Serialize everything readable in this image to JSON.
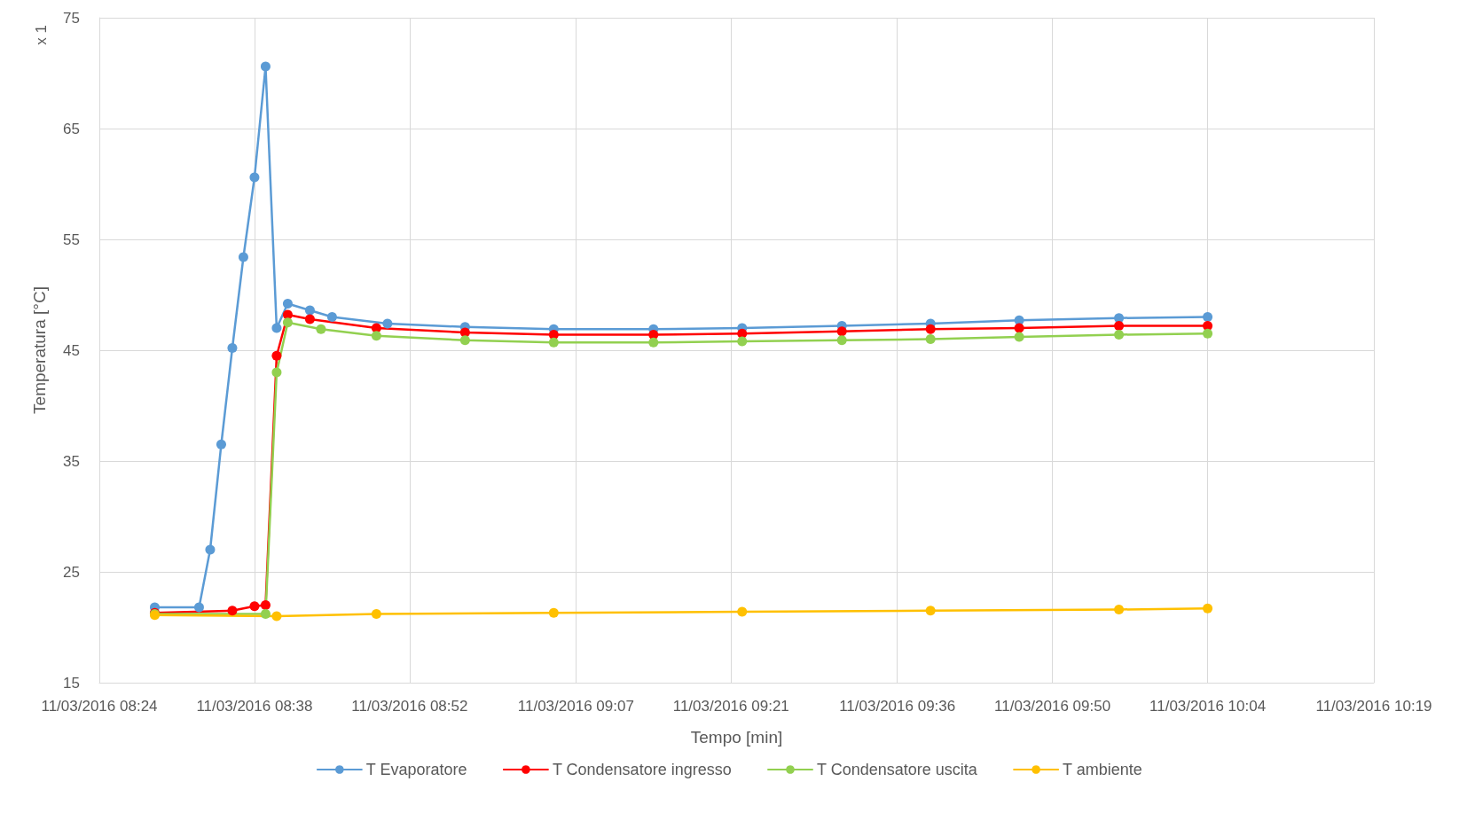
{
  "chart_data": {
    "type": "line",
    "xlabel": "Tempo [min]",
    "ylabel": "Temperatura [°C]",
    "annotations": [
      "x 1"
    ],
    "xlim": [
      "2016-03-11T08:24",
      "2016-03-11T10:19"
    ],
    "xticks": [
      {
        "value": "2016-03-11T08:24",
        "label": "11/03/2016 08:24"
      },
      {
        "value": "2016-03-11T08:38",
        "label": "11/03/2016 08:38"
      },
      {
        "value": "2016-03-11T08:52",
        "label": "11/03/2016 08:52"
      },
      {
        "value": "2016-03-11T09:07",
        "label": "11/03/2016 09:07"
      },
      {
        "value": "2016-03-11T09:21",
        "label": "11/03/2016 09:21"
      },
      {
        "value": "2016-03-11T09:36",
        "label": "11/03/2016 09:36"
      },
      {
        "value": "2016-03-11T09:50",
        "label": "11/03/2016 09:50"
      },
      {
        "value": "2016-03-11T10:04",
        "label": "11/03/2016 10:04"
      },
      {
        "value": "2016-03-11T10:19",
        "label": "11/03/2016 10:19"
      }
    ],
    "ylim": [
      15,
      75
    ],
    "yticks": [
      15,
      25,
      35,
      45,
      55,
      65,
      75
    ],
    "grid": true,
    "legend": "bottom",
    "marker": "circle",
    "line_style": "solid",
    "series": [
      {
        "name": "T Evaporatore",
        "color": "#5b9bd5",
        "x": [
          "2016-03-11T08:29",
          "2016-03-11T08:33",
          "2016-03-11T08:34",
          "2016-03-11T08:35",
          "2016-03-11T08:36",
          "2016-03-11T08:37",
          "2016-03-11T08:38",
          "2016-03-11T08:39",
          "2016-03-11T08:40",
          "2016-03-11T08:41",
          "2016-03-11T08:43",
          "2016-03-11T08:45",
          "2016-03-11T08:50",
          "2016-03-11T08:57",
          "2016-03-11T09:05",
          "2016-03-11T09:14",
          "2016-03-11T09:22",
          "2016-03-11T09:31",
          "2016-03-11T09:39",
          "2016-03-11T09:47",
          "2016-03-11T09:56",
          "2016-03-11T10:04"
        ],
        "values": [
          21.8,
          21.8,
          27,
          36.5,
          45.2,
          53.4,
          60.6,
          70.6,
          47,
          49.2,
          48.6,
          48,
          47.4,
          47.1,
          46.9,
          46.9,
          47,
          47.2,
          47.4,
          47.7,
          47.9,
          48
        ]
      },
      {
        "name": "T Condensatore ingresso",
        "color": "#ff0000",
        "x": [
          "2016-03-11T08:29",
          "2016-03-11T08:36",
          "2016-03-11T08:38",
          "2016-03-11T08:39",
          "2016-03-11T08:40",
          "2016-03-11T08:41",
          "2016-03-11T08:43",
          "2016-03-11T08:49",
          "2016-03-11T08:57",
          "2016-03-11T09:05",
          "2016-03-11T09:14",
          "2016-03-11T09:22",
          "2016-03-11T09:31",
          "2016-03-11T09:39",
          "2016-03-11T09:47",
          "2016-03-11T09:56",
          "2016-03-11T10:04"
        ],
        "values": [
          21.3,
          21.5,
          21.9,
          22,
          44.5,
          48.2,
          47.8,
          47,
          46.6,
          46.4,
          46.4,
          46.5,
          46.7,
          46.9,
          47,
          47.2,
          47.2
        ]
      },
      {
        "name": "T Condensatore uscita",
        "color": "#92d050",
        "x": [
          "2016-03-11T08:29",
          "2016-03-11T08:39",
          "2016-03-11T08:40",
          "2016-03-11T08:41",
          "2016-03-11T08:44",
          "2016-03-11T08:49",
          "2016-03-11T08:57",
          "2016-03-11T09:05",
          "2016-03-11T09:14",
          "2016-03-11T09:22",
          "2016-03-11T09:31",
          "2016-03-11T09:39",
          "2016-03-11T09:47",
          "2016-03-11T09:56",
          "2016-03-11T10:04"
        ],
        "values": [
          21.2,
          21.2,
          43,
          47.5,
          46.9,
          46.3,
          45.9,
          45.7,
          45.7,
          45.8,
          45.9,
          46,
          46.2,
          46.4,
          46.5
        ]
      },
      {
        "name": "T ambiente",
        "color": "#ffc000",
        "x": [
          "2016-03-11T08:29",
          "2016-03-11T08:40",
          "2016-03-11T08:49",
          "2016-03-11T09:05",
          "2016-03-11T09:22",
          "2016-03-11T09:39",
          "2016-03-11T09:56",
          "2016-03-11T10:04"
        ],
        "values": [
          21.1,
          21,
          21.2,
          21.3,
          21.4,
          21.5,
          21.6,
          21.7
        ]
      }
    ]
  }
}
